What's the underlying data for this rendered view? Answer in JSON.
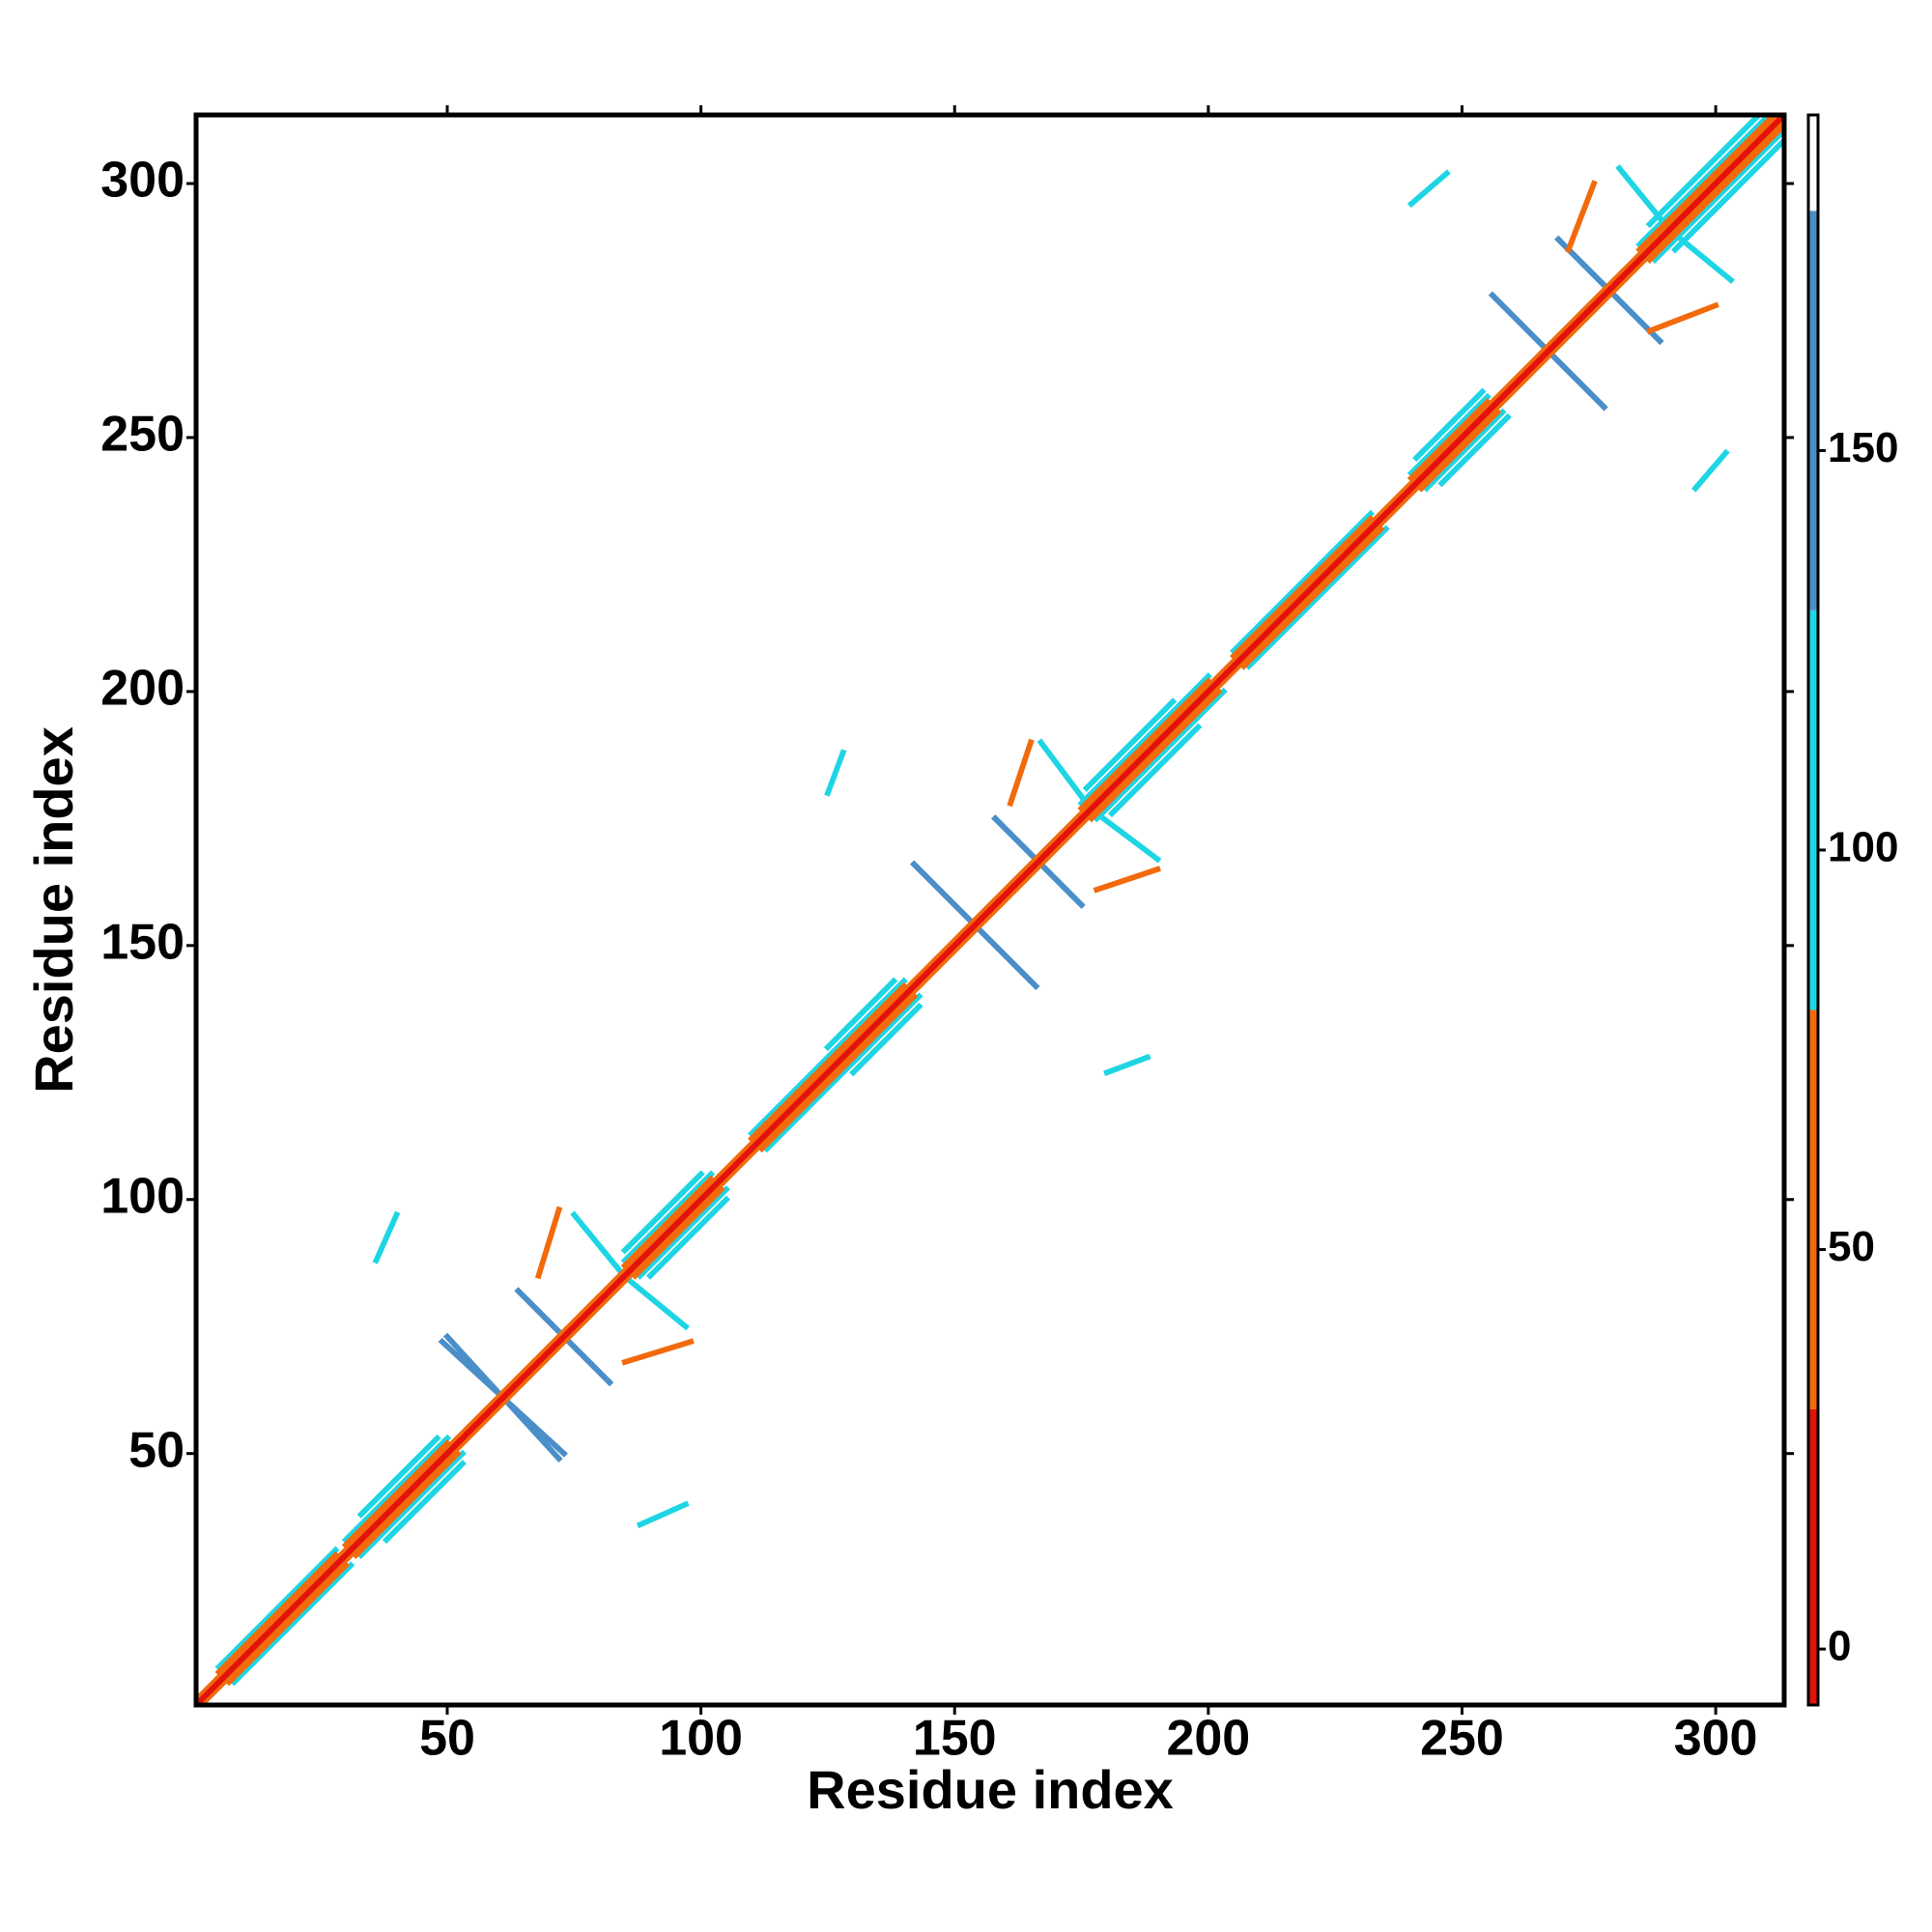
{
  "chart_data": {
    "type": "heatmap",
    "xlabel": "Residue index",
    "ylabel": "Residue index",
    "xlim": [
      0.5,
      313.5
    ],
    "ylim": [
      0.5,
      313.5
    ],
    "xticks": [
      50,
      100,
      150,
      200,
      250,
      300
    ],
    "yticks": [
      50,
      100,
      150,
      200,
      250,
      300
    ],
    "symmetric": true,
    "colorbar": {
      "lim": [
        -7,
        192
      ],
      "ticks": [
        0,
        50,
        100,
        150
      ],
      "bands": [
        {
          "from": -7,
          "to": 30,
          "color": "#e3120b"
        },
        {
          "from": 30,
          "to": 80,
          "color": "#f26a0c"
        },
        {
          "from": 80,
          "to": 130,
          "color": "#1ed5e4"
        },
        {
          "from": 130,
          "to": 180,
          "color": "#4a8fc9"
        },
        {
          "from": 180,
          "to": 192,
          "color": "#ffffff"
        }
      ]
    },
    "segments": [
      {
        "x": [
          33,
          48
        ],
        "y": [
          38,
          53
        ],
        "value": 100
      },
      {
        "x": [
          85,
          100
        ],
        "y": [
          90,
          105
        ],
        "value": 100
      },
      {
        "x": [
          125,
          138
        ],
        "y": [
          130,
          143
        ],
        "value": 100
      },
      {
        "x": [
          176,
          193
        ],
        "y": [
          181,
          198
        ],
        "value": 100
      },
      {
        "x": [
          241,
          254
        ],
        "y": [
          246,
          259
        ],
        "value": 100
      },
      {
        "x": [
          287,
          312
        ],
        "y": [
          292,
          317
        ],
        "value": 100
      },
      {
        "x": [
          75,
          84
        ],
        "y": [
          97,
          86
        ],
        "value": 100
      },
      {
        "x": [
          167,
          176
        ],
        "y": [
          190,
          178
        ],
        "value": 100
      },
      {
        "x": [
          281,
          290
        ],
        "y": [
          303,
          292
        ],
        "value": 100
      },
      {
        "x": [
          36,
          40
        ],
        "y": [
          88,
          97
        ],
        "value": 100
      },
      {
        "x": [
          125,
          128
        ],
        "y": [
          180,
          188
        ],
        "value": 100
      },
      {
        "x": [
          240,
          247
        ],
        "y": [
          296,
          302
        ],
        "value": 100
      },
      {
        "x": [
          50,
          72
        ],
        "y": [
          73,
          49
        ],
        "value": 165
      },
      {
        "x": [
          64,
          82
        ],
        "y": [
          82,
          64
        ],
        "value": 165
      },
      {
        "x": [
          142,
          166
        ],
        "y": [
          166,
          142
        ],
        "value": 165
      },
      {
        "x": [
          158,
          175
        ],
        "y": [
          175,
          158
        ],
        "value": 165
      },
      {
        "x": [
          256,
          278
        ],
        "y": [
          278,
          256
        ],
        "value": 165
      },
      {
        "x": [
          269,
          289
        ],
        "y": [
          289,
          269
        ],
        "value": 165
      },
      {
        "x": [
          68,
          72
        ],
        "y": [
          85,
          98
        ],
        "value": 40
      },
      {
        "x": [
          161,
          165
        ],
        "y": [
          178,
          190
        ],
        "value": 40
      },
      {
        "x": [
          271,
          276
        ],
        "y": [
          287,
          300
        ],
        "value": 40
      },
      {
        "x": [
          5,
          28
        ],
        "y": [
          8,
          31
        ],
        "value": 100
      },
      {
        "x": [
          30,
          50
        ],
        "y": [
          33,
          53
        ],
        "value": 100
      },
      {
        "x": [
          85,
          102
        ],
        "y": [
          88,
          105
        ],
        "value": 100
      },
      {
        "x": [
          110,
          140
        ],
        "y": [
          113,
          143
        ],
        "value": 100
      },
      {
        "x": [
          175,
          200
        ],
        "y": [
          178,
          203
        ],
        "value": 100
      },
      {
        "x": [
          205,
          232
        ],
        "y": [
          208,
          235
        ],
        "value": 100
      },
      {
        "x": [
          240,
          255
        ],
        "y": [
          243,
          258
        ],
        "value": 100
      },
      {
        "x": [
          285,
          313
        ],
        "y": [
          288,
          316
        ],
        "value": 100
      },
      {
        "x": [
          5,
          28
        ],
        "y": [
          7,
          30
        ],
        "value": 40
      },
      {
        "x": [
          30,
          50
        ],
        "y": [
          32,
          52
        ],
        "value": 40
      },
      {
        "x": [
          85,
          102
        ],
        "y": [
          87,
          104
        ],
        "value": 40
      },
      {
        "x": [
          110,
          140
        ],
        "y": [
          112,
          142
        ],
        "value": 40
      },
      {
        "x": [
          175,
          200
        ],
        "y": [
          177,
          202
        ],
        "value": 40
      },
      {
        "x": [
          205,
          232
        ],
        "y": [
          207,
          234
        ],
        "value": 40
      },
      {
        "x": [
          240,
          255
        ],
        "y": [
          242,
          257
        ],
        "value": 40
      },
      {
        "x": [
          285,
          313
        ],
        "y": [
          287,
          315
        ],
        "value": 40
      },
      {
        "x": [
          1,
          312
        ],
        "y": [
          2,
          313
        ],
        "value": 40
      },
      {
        "x": [
          1,
          313
        ],
        "y": [
          1,
          313
        ],
        "value": 0
      }
    ]
  }
}
